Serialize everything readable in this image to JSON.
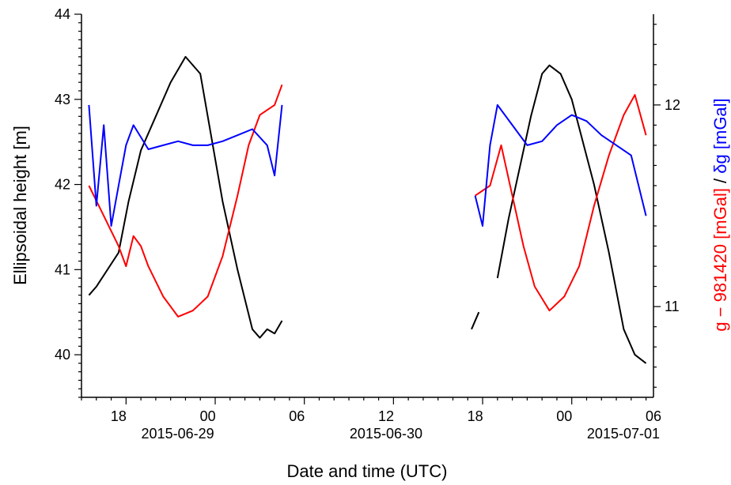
{
  "chart_data": {
    "type": "line",
    "xlabel": "Date and time (UTC)",
    "ylabel_left": "Ellipsoidal height [m]",
    "ylabel_right_parts": [
      {
        "text": "g − 981420 [mGal]",
        "color": "#ff0000"
      },
      {
        "text": " / ",
        "color": "#000000"
      },
      {
        "text": "δg [mGal]",
        "color": "#0000ff"
      }
    ],
    "x_range": [
      "2015-06-29T15:30",
      "2015-07-01T06:00"
    ],
    "ylim_left": [
      39.5,
      44
    ],
    "ylim_right": [
      10.55,
      12.45
    ],
    "x_ticks": [
      {
        "time": "2015-06-29T18:00",
        "label": "18"
      },
      {
        "time": "2015-06-30T00:00",
        "label": "00"
      },
      {
        "time": "2015-06-30T06:00",
        "label": "06"
      },
      {
        "time": "2015-06-30T12:00",
        "label": "12"
      },
      {
        "time": "2015-06-30T18:00",
        "label": "18"
      },
      {
        "time": "2015-07-01T00:00",
        "label": "00"
      },
      {
        "time": "2015-07-01T06:00",
        "label": "06"
      }
    ],
    "x_date_labels": [
      {
        "time": "2015-06-30T00:00",
        "label": "2015-06-29",
        "anchor": "end"
      },
      {
        "time": "2015-06-30T12:00",
        "label": "2015-06-30",
        "anchor": "middle"
      },
      {
        "time": "2015-07-01T06:00",
        "label": "2015-07-01",
        "anchor": "end"
      }
    ],
    "y_ticks_left": [
      40,
      41,
      42,
      43,
      44
    ],
    "y_ticks_right": [
      11,
      12
    ],
    "grid": false,
    "series": [
      {
        "axis": "left",
        "color": "#000000",
        "segments": [
          [
            [
              "2015-06-29T16:00",
              40.7
            ],
            [
              "2015-06-29T16:30",
              40.8
            ],
            [
              "2015-06-29T18:00",
              41.2
            ],
            [
              "2015-06-29T18:40",
              41.8
            ],
            [
              "2015-06-29T19:30",
              42.4
            ],
            [
              "2015-06-29T20:30",
              42.8
            ],
            [
              "2015-06-29T21:30",
              43.2
            ],
            [
              "2015-06-29T22:30",
              43.5
            ],
            [
              "2015-06-29T23:30",
              43.3
            ],
            [
              "2015-06-30T00:00",
              42.8
            ],
            [
              "2015-06-30T00:30",
              42.3
            ],
            [
              "2015-06-30T01:00",
              41.8
            ],
            [
              "2015-06-30T02:00",
              41.0
            ],
            [
              "2015-06-30T03:00",
              40.3
            ],
            [
              "2015-06-30T03:30",
              40.2
            ],
            [
              "2015-06-30T04:00",
              40.3
            ],
            [
              "2015-06-30T04:30",
              40.25
            ],
            [
              "2015-06-30T05:00",
              40.4
            ]
          ],
          [
            [
              "2015-06-30T17:45",
              40.3
            ],
            [
              "2015-06-30T18:15",
              40.5
            ]
          ],
          [
            [
              "2015-06-30T19:30",
              40.9
            ],
            [
              "2015-06-30T20:15",
              41.6
            ],
            [
              "2015-06-30T21:00",
              42.2
            ],
            [
              "2015-06-30T21:45",
              42.8
            ],
            [
              "2015-06-30T22:30",
              43.3
            ],
            [
              "2015-06-30T23:00",
              43.4
            ],
            [
              "2015-06-30T23:45",
              43.3
            ],
            [
              "2015-07-01T00:30",
              43.0
            ],
            [
              "2015-07-01T01:15",
              42.5
            ],
            [
              "2015-07-01T02:00",
              42.0
            ],
            [
              "2015-07-01T03:00",
              41.2
            ],
            [
              "2015-07-01T04:00",
              40.3
            ],
            [
              "2015-07-01T04:45",
              40.0
            ],
            [
              "2015-07-01T05:30",
              39.9
            ]
          ]
        ]
      },
      {
        "axis": "right",
        "color": "#ff0000",
        "segments": [
          [
            [
              "2015-06-29T16:00",
              11.6
            ],
            [
              "2015-06-29T17:00",
              11.45
            ],
            [
              "2015-06-29T18:00",
              11.3
            ],
            [
              "2015-06-29T18:30",
              11.2
            ],
            [
              "2015-06-29T19:00",
              11.35
            ],
            [
              "2015-06-29T19:30",
              11.3
            ],
            [
              "2015-06-29T20:00",
              11.2
            ],
            [
              "2015-06-29T21:00",
              11.05
            ],
            [
              "2015-06-29T22:00",
              10.95
            ],
            [
              "2015-06-29T23:00",
              10.98
            ],
            [
              "2015-06-30T00:00",
              11.05
            ],
            [
              "2015-06-30T01:00",
              11.25
            ],
            [
              "2015-06-30T02:00",
              11.55
            ],
            [
              "2015-06-30T02:45",
              11.8
            ],
            [
              "2015-06-30T03:30",
              11.95
            ],
            [
              "2015-06-30T04:30",
              12.0
            ],
            [
              "2015-06-30T05:00",
              12.1
            ]
          ],
          [
            [
              "2015-06-30T18:00",
              11.55
            ],
            [
              "2015-06-30T19:00",
              11.6
            ],
            [
              "2015-06-30T19:45",
              11.8
            ],
            [
              "2015-06-30T20:30",
              11.55
            ],
            [
              "2015-06-30T21:15",
              11.3
            ],
            [
              "2015-06-30T22:00",
              11.1
            ],
            [
              "2015-06-30T23:00",
              10.98
            ],
            [
              "2015-07-01T00:00",
              11.05
            ],
            [
              "2015-07-01T01:00",
              11.2
            ],
            [
              "2015-07-01T02:00",
              11.5
            ],
            [
              "2015-07-01T03:00",
              11.75
            ],
            [
              "2015-07-01T04:00",
              11.95
            ],
            [
              "2015-07-01T04:45",
              12.05
            ],
            [
              "2015-07-01T05:30",
              11.85
            ]
          ]
        ]
      },
      {
        "axis": "right",
        "color": "#0000ff",
        "segments": [
          [
            [
              "2015-06-29T16:00",
              12.0
            ],
            [
              "2015-06-29T16:30",
              11.5
            ],
            [
              "2015-06-29T17:00",
              11.9
            ],
            [
              "2015-06-29T17:30",
              11.4
            ],
            [
              "2015-06-29T18:00",
              11.6
            ],
            [
              "2015-06-29T18:30",
              11.8
            ],
            [
              "2015-06-29T19:00",
              11.9
            ],
            [
              "2015-06-29T20:00",
              11.78
            ],
            [
              "2015-06-29T21:00",
              11.8
            ],
            [
              "2015-06-29T22:00",
              11.82
            ],
            [
              "2015-06-29T23:00",
              11.8
            ],
            [
              "2015-06-30T00:00",
              11.8
            ],
            [
              "2015-06-30T01:00",
              11.82
            ],
            [
              "2015-06-30T02:00",
              11.85
            ],
            [
              "2015-06-30T03:00",
              11.88
            ],
            [
              "2015-06-30T04:00",
              11.8
            ],
            [
              "2015-06-30T04:30",
              11.65
            ],
            [
              "2015-06-30T05:00",
              12.0
            ]
          ],
          [
            [
              "2015-06-30T18:00",
              11.55
            ],
            [
              "2015-06-30T18:30",
              11.4
            ],
            [
              "2015-06-30T19:00",
              11.8
            ],
            [
              "2015-06-30T19:30",
              12.0
            ],
            [
              "2015-06-30T20:30",
              11.9
            ],
            [
              "2015-06-30T21:30",
              11.8
            ],
            [
              "2015-06-30T22:30",
              11.82
            ],
            [
              "2015-06-30T23:30",
              11.9
            ],
            [
              "2015-07-01T00:30",
              11.95
            ],
            [
              "2015-07-01T01:30",
              11.92
            ],
            [
              "2015-07-01T02:30",
              11.85
            ],
            [
              "2015-07-01T03:30",
              11.8
            ],
            [
              "2015-07-01T04:30",
              11.75
            ],
            [
              "2015-07-01T05:30",
              11.45
            ]
          ]
        ]
      }
    ]
  }
}
